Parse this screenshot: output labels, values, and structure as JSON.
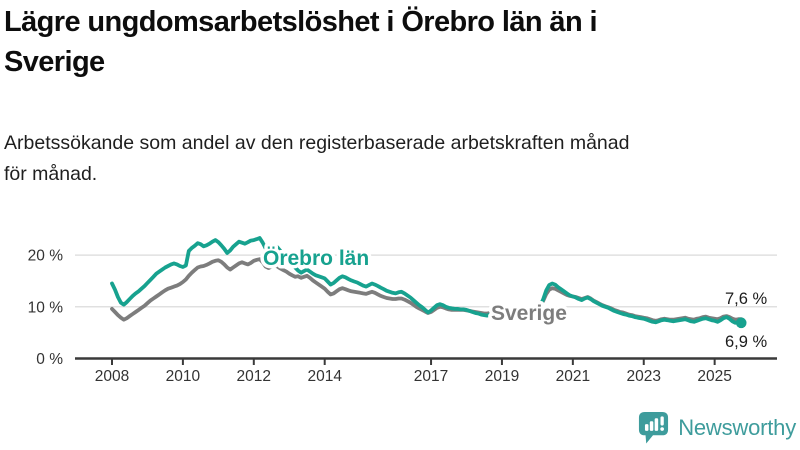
{
  "header": {
    "title": "Lägre ungdomsarbetslöshet i Örebro län än i\nSverige",
    "subtitle": "Arbetssökande som andel av den registerbaserade arbetskraften månad\nför månad."
  },
  "chart": {
    "series_labels": {
      "orebro": "Örebro län",
      "sverige": "Sverige"
    },
    "end_labels": {
      "sverige": "7,6 %",
      "orebro": "6,9 %"
    },
    "y_axis_labels": [
      {
        "value": 0,
        "label": "0 %"
      },
      {
        "value": 10,
        "label": "10 %"
      },
      {
        "value": 20,
        "label": "20 %"
      }
    ],
    "colors": {
      "orebro": "#17A28F",
      "sverige": "#7D7D7D",
      "grid": "#E0E0E0",
      "axis": "#3A3A3A",
      "tick_text": "#333333",
      "end_label_text": "#1C1C1C"
    }
  },
  "chart_data": {
    "type": "line",
    "title": "Lägre ungdomsarbetslöshet i Örebro län än i Sverige",
    "subtitle": "Arbetssökande som andel av den registerbaserade arbetskraften månad för månad.",
    "unit": "percent",
    "x_start": "2008-01",
    "x_end": "2025-10",
    "x_step": "month",
    "xticks": [
      2008,
      2010,
      2012,
      2014,
      2017,
      2019,
      2021,
      2023,
      2025
    ],
    "yticks": [
      0,
      10,
      20
    ],
    "ylim": [
      0,
      25
    ],
    "grid": "horizontal",
    "legend": "inline-labels",
    "latest_values": {
      "Örebro län": "6,9 %",
      "Sverige": "7,6 %"
    },
    "series": [
      {
        "name": "Örebro län",
        "color": "#17A28F",
        "values": [
          14.5,
          13.3,
          11.9,
          10.8,
          10.4,
          10.9,
          11.5,
          12.1,
          12.6,
          13.0,
          13.5,
          14.0,
          14.6,
          15.2,
          15.8,
          16.4,
          16.8,
          17.2,
          17.6,
          17.9,
          18.2,
          18.4,
          18.2,
          17.9,
          17.7,
          18.0,
          20.8,
          21.4,
          21.8,
          22.3,
          22.1,
          21.7,
          21.9,
          22.2,
          22.6,
          22.9,
          22.5,
          21.9,
          21.2,
          20.4,
          20.9,
          21.6,
          22.1,
          22.6,
          22.4,
          22.2,
          22.5,
          22.8,
          22.9,
          23.1,
          23.3,
          22.4,
          21.3,
          20.9,
          21.4,
          21.9,
          21.5,
          20.8,
          20.1,
          19.4,
          18.8,
          18.2,
          17.6,
          17.0,
          16.6,
          16.9,
          17.2,
          16.8,
          16.4,
          16.1,
          15.9,
          15.7,
          15.5,
          14.9,
          14.3,
          14.6,
          15.1,
          15.6,
          15.9,
          15.7,
          15.4,
          15.1,
          14.9,
          14.7,
          14.4,
          14.1,
          13.9,
          14.2,
          14.5,
          14.3,
          14.0,
          13.7,
          13.4,
          13.1,
          12.9,
          12.7,
          12.6,
          12.8,
          12.9,
          12.6,
          12.2,
          11.8,
          11.3,
          10.8,
          10.3,
          9.9,
          9.4,
          8.9,
          9.3,
          9.8,
          10.3,
          10.5,
          10.3,
          10.0,
          9.8,
          9.7,
          9.6,
          9.6,
          9.5,
          9.5,
          9.4,
          9.2,
          9.0,
          8.8,
          8.7,
          8.5,
          8.4,
          8.3,
          8.5,
          8.8,
          9.0,
          9.2,
          9.3,
          9.4,
          9.5,
          9.5,
          9.4,
          9.4,
          9.5,
          9.5,
          9.4,
          9.3,
          9.3,
          9.4,
          9.8,
          10.2,
          11.5,
          13.2,
          14.2,
          14.5,
          14.3,
          13.8,
          13.4,
          13.0,
          12.6,
          12.2,
          12.0,
          11.8,
          11.5,
          11.3,
          11.6,
          11.8,
          11.5,
          11.1,
          10.8,
          10.5,
          10.2,
          10.0,
          9.8,
          9.5,
          9.2,
          9.0,
          8.8,
          8.6,
          8.5,
          8.3,
          8.2,
          8.0,
          7.9,
          7.8,
          7.7,
          7.5,
          7.3,
          7.1,
          7.0,
          7.2,
          7.4,
          7.5,
          7.4,
          7.3,
          7.2,
          7.3,
          7.4,
          7.5,
          7.6,
          7.4,
          7.2,
          7.1,
          7.3,
          7.5,
          7.7,
          7.8,
          7.6,
          7.4,
          7.3,
          7.1,
          7.4,
          7.8,
          8.0,
          7.7,
          7.2,
          6.9,
          7.0,
          6.9
        ]
      },
      {
        "name": "Sverige",
        "color": "#7D7D7D",
        "values": [
          9.6,
          9.0,
          8.4,
          7.9,
          7.5,
          7.8,
          8.2,
          8.6,
          9.0,
          9.4,
          9.8,
          10.2,
          10.7,
          11.2,
          11.6,
          12.0,
          12.4,
          12.8,
          13.2,
          13.5,
          13.7,
          13.9,
          14.1,
          14.4,
          14.8,
          15.3,
          16.0,
          16.6,
          17.1,
          17.6,
          17.8,
          17.9,
          18.1,
          18.4,
          18.7,
          18.9,
          19.0,
          18.7,
          18.2,
          17.6,
          17.2,
          17.6,
          18.0,
          18.4,
          18.6,
          18.4,
          18.2,
          18.5,
          18.9,
          19.1,
          19.2,
          18.6,
          17.8,
          17.5,
          17.8,
          18.1,
          17.8,
          17.4,
          17.1,
          16.8,
          16.4,
          16.1,
          15.8,
          15.9,
          15.6,
          15.8,
          16.0,
          15.6,
          15.1,
          14.7,
          14.3,
          13.9,
          13.5,
          12.9,
          12.4,
          12.6,
          13.0,
          13.4,
          13.6,
          13.4,
          13.2,
          13.0,
          12.9,
          12.8,
          12.7,
          12.6,
          12.5,
          12.7,
          12.9,
          12.7,
          12.4,
          12.1,
          11.9,
          11.7,
          11.6,
          11.5,
          11.5,
          11.6,
          11.6,
          11.4,
          11.1,
          10.8,
          10.4,
          10.0,
          9.7,
          9.4,
          9.1,
          8.8,
          9.0,
          9.4,
          9.8,
          10.0,
          9.9,
          9.7,
          9.5,
          9.4,
          9.4,
          9.4,
          9.4,
          9.4,
          9.3,
          9.2,
          9.1,
          9.0,
          8.9,
          8.8,
          8.7,
          8.7,
          8.8,
          9.0,
          9.2,
          9.3,
          9.4,
          9.4,
          9.5,
          9.5,
          9.5,
          9.5,
          9.6,
          9.6,
          9.6,
          9.6,
          9.7,
          9.8,
          10.0,
          10.3,
          11.2,
          12.5,
          13.3,
          13.6,
          13.5,
          13.2,
          12.9,
          12.6,
          12.3,
          12.1,
          12.0,
          11.9,
          11.7,
          11.5,
          11.7,
          11.9,
          11.6,
          11.2,
          10.9,
          10.6,
          10.3,
          10.1,
          9.9,
          9.7,
          9.4,
          9.2,
          9.0,
          8.9,
          8.7,
          8.5,
          8.4,
          8.2,
          8.1,
          8.0,
          7.9,
          7.8,
          7.6,
          7.4,
          7.3,
          7.4,
          7.6,
          7.7,
          7.6,
          7.5,
          7.5,
          7.6,
          7.7,
          7.8,
          7.9,
          7.7,
          7.6,
          7.5,
          7.7,
          7.8,
          8.0,
          8.1,
          7.9,
          7.8,
          7.7,
          7.6,
          7.8,
          8.1,
          8.2,
          8.0,
          7.7,
          7.5,
          7.6,
          7.6
        ]
      }
    ]
  },
  "footer": {
    "brand": "Newsworthy",
    "brand_color": "#3E9C9C"
  }
}
